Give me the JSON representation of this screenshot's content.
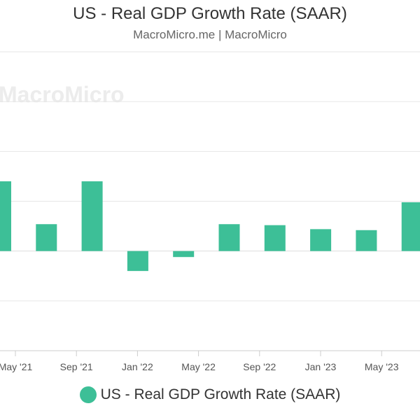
{
  "title": "US - Real GDP Growth Rate (SAAR)",
  "subtitle": "MacroMicro.me | MacroMicro",
  "watermark": "MacroMicro",
  "colors": {
    "series": "#3dbf97",
    "grid": "#e6e6e6",
    "axis": "#cccccc",
    "tick_text": "#555555",
    "watermark": "#ececec"
  },
  "legend": {
    "label": "US - Real GDP Growth Rate (SAAR)",
    "placement": "bottom-center"
  },
  "chart_data": {
    "type": "bar",
    "title": "US - Real GDP Growth Rate (SAAR)",
    "subtitle": "MacroMicro.me | MacroMicro",
    "xlabel": "",
    "ylabel": "",
    "grid": true,
    "ylim": [
      -10,
      20
    ],
    "x_ticks": [
      "May '21",
      "Sep '21",
      "Jan '22",
      "May '22",
      "Sep '22",
      "Jan '23",
      "May '23"
    ],
    "categories": [
      "Q2 2021",
      "Q3 2021",
      "Q4 2021",
      "Q1 2022",
      "Q2 2022",
      "Q3 2022",
      "Q4 2022",
      "Q1 2023",
      "Q2 2023",
      "Q3 2023"
    ],
    "series": [
      {
        "name": "US - Real GDP Growth Rate (SAAR)",
        "values": [
          7.0,
          2.7,
          7.0,
          -2.0,
          -0.6,
          2.7,
          2.6,
          2.2,
          2.1,
          4.9
        ]
      }
    ]
  }
}
